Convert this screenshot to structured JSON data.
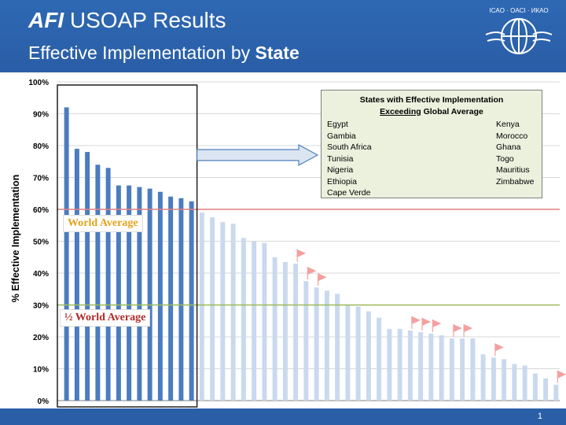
{
  "header": {
    "title_italic": "AFI",
    "title_rest": "USOAP Results",
    "subtitle_plain": "Effective Implementation by",
    "subtitle_bold": "State",
    "logo_text": "ICAO · OACI · ИКАО"
  },
  "footer": {
    "page_number": "1"
  },
  "legend": {
    "line1": "States with Effective Implementation",
    "underlined": "Exceeding",
    "line2_rest": "Global Average",
    "left_states": [
      "Egypt",
      "Gambia",
      "South Africa",
      "Tunisia",
      "Nigeria",
      "Ethiopia",
      "Cape Verde"
    ],
    "right_states": [
      "Kenya",
      "Morocco",
      "Ghana",
      "Togo",
      "Mauritius",
      "Zimbabwe"
    ]
  },
  "annotations": {
    "world_average": "World Average",
    "half_world_average": "½ World Average"
  },
  "colors": {
    "header_bg": "#2a5ea6",
    "highlight_bar": "#4a7cbf",
    "muted_bar": "#c9d9ee",
    "world_avg_line": "#e08080",
    "half_avg_line": "#9bbb59",
    "flag": "#f4a0a0",
    "legend_bg": "#ebf1dd"
  },
  "chart_data": {
    "type": "bar",
    "ylabel": "% Effective Implementation",
    "ylim": [
      0,
      100
    ],
    "yticks": [
      "0%",
      "10%",
      "20%",
      "30%",
      "40%",
      "50%",
      "60%",
      "70%",
      "80%",
      "90%",
      "100%"
    ],
    "world_average": 60,
    "half_world_average": 30,
    "highlighted_count": 13,
    "values": [
      92,
      79,
      78,
      74,
      73,
      67.5,
      67.5,
      67,
      66.5,
      65.5,
      64,
      63.5,
      62.5,
      59,
      57.5,
      56,
      55.5,
      51,
      50,
      49.5,
      45,
      43.5,
      43,
      37.5,
      35.5,
      34.5,
      33.5,
      30,
      29.5,
      28,
      26,
      22.5,
      22.5,
      22,
      21.5,
      21,
      20.5,
      19.5,
      19.5,
      19.5,
      14.5,
      13.5,
      13,
      11.5,
      11,
      8.5,
      7,
      5
    ],
    "flagged_indices": [
      22,
      23,
      24,
      33,
      34,
      35,
      37,
      38,
      41,
      47
    ]
  }
}
